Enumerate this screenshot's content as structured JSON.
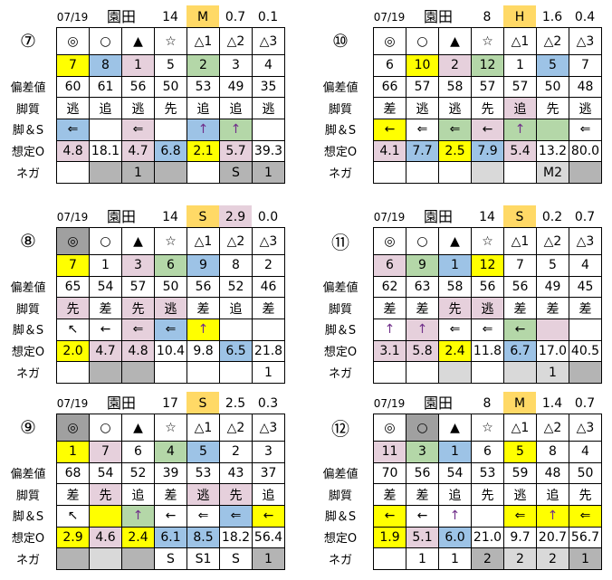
{
  "colors": {
    "_": "#ffffff",
    "y": "#ffff00",
    "b": "#9dc3e6",
    "p": "#e6d0dc",
    "g": "#b4d7a8",
    "d": "#b4b4b4",
    "l": "#d9d9d9",
    "m": "#a0a0a0",
    "o": "#ffd966"
  },
  "row_labels": [
    "偏差値",
    "脚質",
    "脚＆S",
    "想定O",
    "ネガ"
  ],
  "panels": [
    {
      "race": "⑦",
      "date": "07/19",
      "venue": "園田",
      "count": "14",
      "grade": "M",
      "v1": "0.7",
      "v2": "0.1",
      "v1c": "_",
      "rows": [
        {
          "cells": [
            "◎",
            "○",
            "▲",
            "☆",
            "△1",
            "△2",
            "△3"
          ],
          "colors": "_______"
        },
        {
          "cells": [
            "7",
            "8",
            "1",
            "5",
            "2",
            "3",
            "4"
          ],
          "colors": "ybp_g__"
        },
        {
          "cells": [
            "60",
            "61",
            "56",
            "50",
            "53",
            "49",
            "35"
          ],
          "colors": "_______"
        },
        {
          "cells": [
            "逃",
            "追",
            "逃",
            "先",
            "追",
            "追",
            "逃"
          ],
          "colors": "_______"
        },
        {
          "cells": [
            "⇐",
            "",
            "⇐",
            "",
            "↑",
            "↑",
            ""
          ],
          "colors": "b_p_bg_"
        },
        {
          "cells": [
            "4.8",
            "18.1",
            "4.7",
            "6.8",
            "2.1",
            "5.7",
            "39.3"
          ],
          "colors": "p_pbyp_"
        },
        {
          "cells": [
            "",
            "",
            "1",
            "",
            "",
            "S",
            "1"
          ],
          "colors": "_ddd_dd"
        }
      ]
    },
    {
      "race": "⑩",
      "date": "07/19",
      "venue": "園田",
      "count": "8",
      "grade": "H",
      "v1": "1.6",
      "v2": "0.4",
      "v1c": "_",
      "rows": [
        {
          "cells": [
            "◎",
            "○",
            "▲",
            "☆",
            "△1",
            "△2",
            "△3"
          ],
          "colors": "_______"
        },
        {
          "cells": [
            "6",
            "10",
            "2",
            "12",
            "1",
            "5",
            "7"
          ],
          "colors": "_ypg_b_"
        },
        {
          "cells": [
            "66",
            "57",
            "58",
            "57",
            "57",
            "50",
            "48"
          ],
          "colors": "_______"
        },
        {
          "cells": [
            "差",
            "逃",
            "逃",
            "先",
            "追",
            "先",
            "逃"
          ],
          "colors": "____p__"
        },
        {
          "cells": [
            "←",
            "⇐",
            "⇐",
            "←",
            "↑",
            "",
            "⇐"
          ],
          "colors": "y_gpgg_"
        },
        {
          "cells": [
            "4.1",
            "7.7",
            "2.5",
            "7.9",
            "5.4",
            "13.2",
            "80.0"
          ],
          "colors": "pbybp__"
        },
        {
          "cells": [
            "",
            "",
            "",
            "",
            "",
            "M2",
            ""
          ],
          "colors": "___l_ld"
        }
      ]
    },
    {
      "race": "⑧",
      "date": "07/19",
      "venue": "園田",
      "count": "14",
      "grade": "S",
      "v1": "2.9",
      "v2": "0.0",
      "v1c": "p",
      "rows": [
        {
          "cells": [
            "◎",
            "○",
            "▲",
            "☆",
            "△1",
            "△2",
            "△3"
          ],
          "colors": "m______"
        },
        {
          "cells": [
            "7",
            "1",
            "3",
            "6",
            "9",
            "8",
            "2"
          ],
          "colors": "y_pgb__"
        },
        {
          "cells": [
            "65",
            "54",
            "57",
            "50",
            "56",
            "52",
            "46"
          ],
          "colors": "_______"
        },
        {
          "cells": [
            "先",
            "差",
            "先",
            "逃",
            "差",
            "追",
            "差"
          ],
          "colors": "p_pp___"
        },
        {
          "cells": [
            "↖",
            "←",
            "⇐",
            "⇐",
            "↑",
            "",
            ""
          ],
          "colors": "__pby__"
        },
        {
          "cells": [
            "2.0",
            "4.7",
            "4.8",
            "10.4",
            "9.8",
            "6.5",
            "21.8"
          ],
          "colors": "ypp__b_"
        },
        {
          "cells": [
            "",
            "",
            "",
            "",
            "",
            "",
            "1"
          ],
          "colors": "_dd____"
        }
      ]
    },
    {
      "race": "⑪",
      "date": "07/19",
      "venue": "園田",
      "count": "14",
      "grade": "S",
      "v1": "0.2",
      "v2": "0.7",
      "v1c": "_",
      "rows": [
        {
          "cells": [
            "◎",
            "○",
            "▲",
            "☆",
            "△1",
            "△2",
            "△3"
          ],
          "colors": "_______"
        },
        {
          "cells": [
            "6",
            "9",
            "1",
            "12",
            "7",
            "5",
            "4"
          ],
          "colors": "pgby___"
        },
        {
          "cells": [
            "62",
            "63",
            "58",
            "56",
            "56",
            "49",
            "45"
          ],
          "colors": "_______"
        },
        {
          "cells": [
            "差",
            "差",
            "先",
            "逃",
            "差",
            "差",
            "差"
          ],
          "colors": "__pp___"
        },
        {
          "cells": [
            "↑",
            "↑",
            "⇐",
            "⇐",
            "←",
            "",
            ""
          ],
          "colors": "_p__gp_"
        },
        {
          "cells": [
            "3.1",
            "5.8",
            "2.4",
            "11.8",
            "6.7",
            "17.0",
            "40.5"
          ],
          "colors": "ppy_b__"
        },
        {
          "cells": [
            "",
            "",
            "",
            "",
            "",
            "1",
            ""
          ],
          "colors": "__l_lld"
        }
      ]
    },
    {
      "race": "⑨",
      "date": "07/19",
      "venue": "園田",
      "count": "17",
      "grade": "S",
      "v1": "2.5",
      "v2": "0.3",
      "v1c": "_",
      "rows": [
        {
          "cells": [
            "◎",
            "○",
            "▲",
            "☆",
            "△1",
            "△2",
            "△3"
          ],
          "colors": "m______"
        },
        {
          "cells": [
            "1",
            "7",
            "6",
            "4",
            "5",
            "2",
            "3"
          ],
          "colors": "yp_gb__"
        },
        {
          "cells": [
            "68",
            "54",
            "52",
            "39",
            "53",
            "43",
            "37"
          ],
          "colors": "_______"
        },
        {
          "cells": [
            "差",
            "先",
            "追",
            "差",
            "逃",
            "先",
            "追"
          ],
          "colors": "_p__pp_"
        },
        {
          "cells": [
            "↖",
            "",
            "↑",
            "←",
            "⇐",
            "⇐",
            "←"
          ],
          "colors": "_yg__by"
        },
        {
          "cells": [
            "2.9",
            "4.6",
            "2.4",
            "6.1",
            "8.5",
            "18.2",
            "56.4"
          ],
          "colors": "ypybb__"
        },
        {
          "cells": [
            "",
            "",
            "",
            "S",
            "S1",
            "S",
            "1"
          ],
          "colors": "dld___d"
        }
      ]
    },
    {
      "race": "⑫",
      "date": "07/19",
      "venue": "園田",
      "count": "8",
      "grade": "M",
      "v1": "1.4",
      "v2": "0.7",
      "v1c": "_",
      "rows": [
        {
          "cells": [
            "◎",
            "○",
            "▲",
            "☆",
            "△1",
            "△2",
            "△3"
          ],
          "colors": "_m_____"
        },
        {
          "cells": [
            "11",
            "3",
            "1",
            "6",
            "5",
            "8",
            "4"
          ],
          "colors": "pgb_y__"
        },
        {
          "cells": [
            "70",
            "56",
            "54",
            "53",
            "59",
            "48",
            "50"
          ],
          "colors": "_______"
        },
        {
          "cells": [
            "差",
            "差",
            "追",
            "先",
            "逃",
            "追",
            "先"
          ],
          "colors": "_______"
        },
        {
          "cells": [
            "←",
            "←",
            "↑",
            "",
            "⇐",
            "↑",
            "⇐"
          ],
          "colors": "y___yyy"
        },
        {
          "cells": [
            "1.9",
            "5.1",
            "6.0",
            "21.0",
            "9.7",
            "20.7",
            "56.7"
          ],
          "colors": "ypb____"
        },
        {
          "cells": [
            "",
            "1",
            "1",
            "2",
            "2",
            "2",
            "1"
          ],
          "colors": "___dlld"
        }
      ]
    }
  ]
}
